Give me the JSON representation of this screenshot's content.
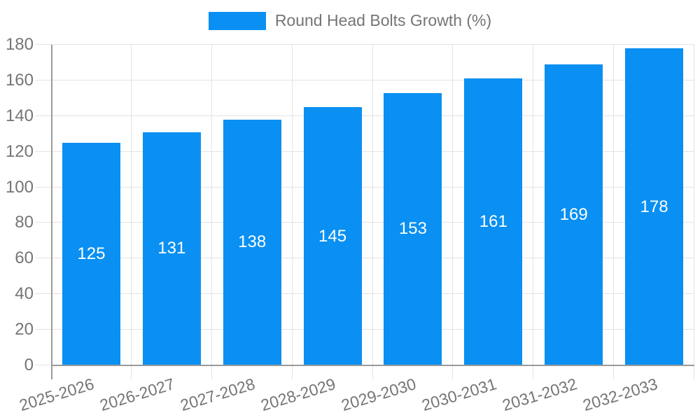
{
  "chart_data": {
    "type": "bar",
    "title": "",
    "categories": [
      "2025-2026",
      "2026-2027",
      "2027-2028",
      "2028-2029",
      "2029-2030",
      "2030-2031",
      "2031-2032",
      "2032-2033"
    ],
    "values": [
      125,
      131,
      138,
      145,
      153,
      161,
      169,
      178
    ],
    "series_name": "Round Head Bolts Growth (%)",
    "xlabel": "",
    "ylabel": "",
    "ylim": [
      0,
      180
    ],
    "yticks": [
      0,
      20,
      40,
      60,
      80,
      100,
      120,
      140,
      160,
      180
    ],
    "grid": true,
    "legend_position": "top-center",
    "value_labels": "inside-center"
  },
  "legend": {
    "label": "Round Head Bolts Growth (%)"
  },
  "colors": {
    "bar": "#0a90f2",
    "gridline": "#e3e3e3",
    "axis": "#9a9a9a",
    "axis_text": "#757575",
    "value_text": "#ffffff",
    "background": "#ffffff"
  }
}
